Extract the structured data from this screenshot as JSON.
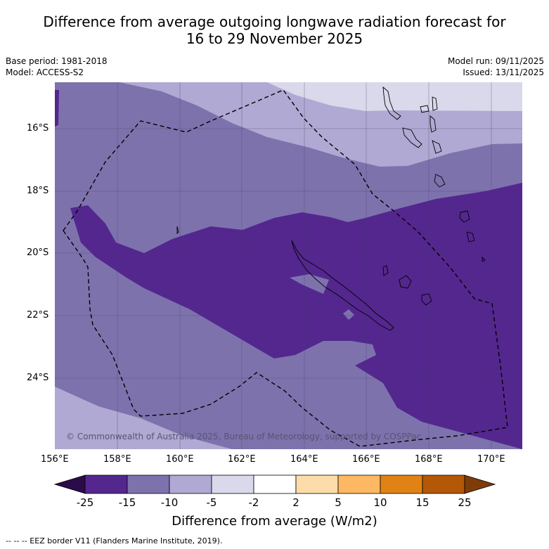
{
  "title_line1": "Difference from average outgoing longwave radiation forecast for",
  "title_line2": "16 to 29 November 2025",
  "base_period": "Base period: 1981-2018",
  "model": "Model: ACCESS-S2",
  "model_run": "Model run: 09/11/2025",
  "issued": "Issued: 13/11/2025",
  "lat_labels": [
    "16°S",
    "18°S",
    "20°S",
    "22°S",
    "24°S"
  ],
  "lon_labels": [
    "156°E",
    "158°E",
    "160°E",
    "162°E",
    "164°E",
    "166°E",
    "168°E",
    "170°E"
  ],
  "colorbar": {
    "labels": [
      "-25",
      "-15",
      "-10",
      "-5",
      "-2",
      "2",
      "5",
      "10",
      "15",
      "25"
    ],
    "colors": [
      "#2c0b4a",
      "#54278f",
      "#7e72ad",
      "#b0a9d3",
      "#d9d9eb",
      "#ffffff",
      "#fddcab",
      "#fdb863",
      "#e08214",
      "#b35806",
      "#7f3b08"
    ],
    "title": "Difference from average (W/m2)"
  },
  "copyright": "© Commonwealth of Australia 2025, Bureau of Meteorology, supported by COSPPac",
  "footnote": "--  --  -- EEZ border V11 (Flanders Marine Institute, 2019)."
}
